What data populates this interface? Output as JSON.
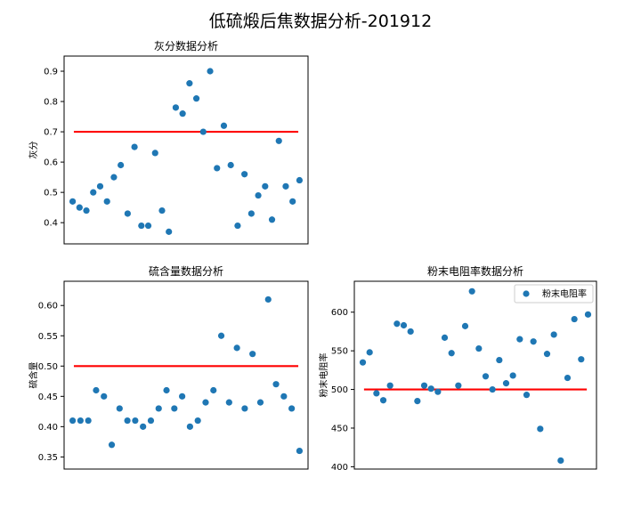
{
  "figure": {
    "title": "低硫煅后焦数据分析-201912"
  },
  "colors": {
    "points": "#1f77b4",
    "reference": "#ff0000"
  },
  "chart_data": [
    {
      "id": "ash",
      "type": "scatter",
      "title": "灰分数据分析",
      "ylabel": "灰分",
      "xlabel": "",
      "ylim": [
        0.33,
        0.95
      ],
      "yticks": [
        0.4,
        0.5,
        0.6,
        0.7,
        0.8,
        0.9
      ],
      "ytick_labels": [
        "0.4",
        "0.5",
        "0.6",
        "0.7",
        "0.8",
        "0.9"
      ],
      "xticks_shown": false,
      "reference_line": 0.7,
      "values": [
        0.47,
        0.45,
        0.44,
        0.5,
        0.52,
        0.47,
        0.55,
        0.59,
        0.43,
        0.65,
        0.39,
        0.39,
        0.63,
        0.44,
        0.37,
        0.78,
        0.76,
        0.86,
        0.81,
        0.7,
        0.9,
        0.58,
        0.72,
        0.59,
        0.39,
        0.56,
        0.43,
        0.49,
        0.52,
        0.41,
        0.67,
        0.52,
        0.47,
        0.54
      ],
      "legend": null
    },
    {
      "id": "sulfur",
      "type": "scatter",
      "title": "硫含量数据分析",
      "ylabel": "硫含量",
      "xlabel": "",
      "ylim": [
        0.33,
        0.64
      ],
      "yticks": [
        0.35,
        0.4,
        0.45,
        0.5,
        0.55,
        0.6
      ],
      "ytick_labels": [
        "0.35",
        "0.40",
        "0.45",
        "0.50",
        "0.55",
        "0.60"
      ],
      "xticks_shown": false,
      "reference_line": 0.5,
      "values": [
        0.41,
        0.41,
        0.41,
        0.46,
        0.45,
        0.37,
        0.43,
        0.41,
        0.41,
        0.4,
        0.41,
        0.43,
        0.46,
        0.43,
        0.45,
        0.4,
        0.41,
        0.44,
        0.46,
        0.55,
        0.44,
        0.53,
        0.43,
        0.52,
        0.44,
        0.61,
        0.47,
        0.45,
        0.43,
        0.36
      ],
      "legend": null
    },
    {
      "id": "resistivity",
      "type": "scatter",
      "title": "粉末电阻率数据分析",
      "ylabel": "粉末电阻率",
      "xlabel": "",
      "ylim": [
        397,
        640
      ],
      "yticks": [
        400,
        450,
        500,
        550,
        600
      ],
      "ytick_labels": [
        "400",
        "450",
        "500",
        "550",
        "600"
      ],
      "xticks_shown": false,
      "reference_line": 500,
      "values": [
        535,
        548,
        495,
        486,
        505,
        585,
        583,
        575,
        485,
        505,
        501,
        497,
        567,
        547,
        505,
        582,
        627,
        553,
        517,
        500,
        538,
        508,
        518,
        565,
        493,
        562,
        449,
        546,
        571,
        408,
        515,
        591,
        539,
        597
      ],
      "legend": "粉末电阻率"
    }
  ]
}
